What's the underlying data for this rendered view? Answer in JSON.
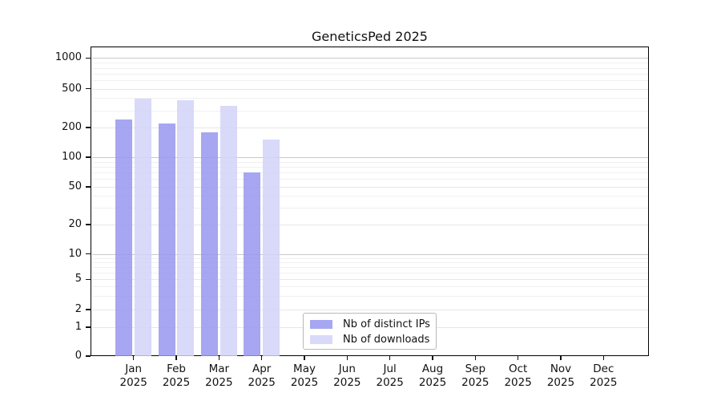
{
  "chart_data": {
    "type": "bar",
    "title": "GeneticsPed 2025",
    "categories": [
      "Jan",
      "Feb",
      "Mar",
      "Apr",
      "May",
      "Jun",
      "Jul",
      "Aug",
      "Sep",
      "Oct",
      "Nov",
      "Dec"
    ],
    "category_year": "2025",
    "series": [
      {
        "name": "Nb of distinct IPs",
        "color": "#a6a6f2",
        "values": [
          240,
          220,
          180,
          70,
          0,
          0,
          0,
          0,
          0,
          0,
          0,
          0
        ]
      },
      {
        "name": "Nb of downloads",
        "color": "#d9d9f9",
        "values": [
          395,
          378,
          333,
          152,
          0,
          0,
          0,
          0,
          0,
          0,
          0,
          0
        ]
      }
    ],
    "y_scale": "symlog",
    "y_ticks": [
      0,
      1,
      2,
      5,
      10,
      20,
      50,
      100,
      200,
      500,
      1000
    ],
    "ylim": [
      0,
      1000
    ],
    "grid": "horizontal-log-minor",
    "legend_position": "lower center",
    "bar_alpha": 0.85,
    "axis_color": "#000000",
    "major_grid_color": "#c9c9c9",
    "minor_grid_color": "#f0f0f0"
  }
}
